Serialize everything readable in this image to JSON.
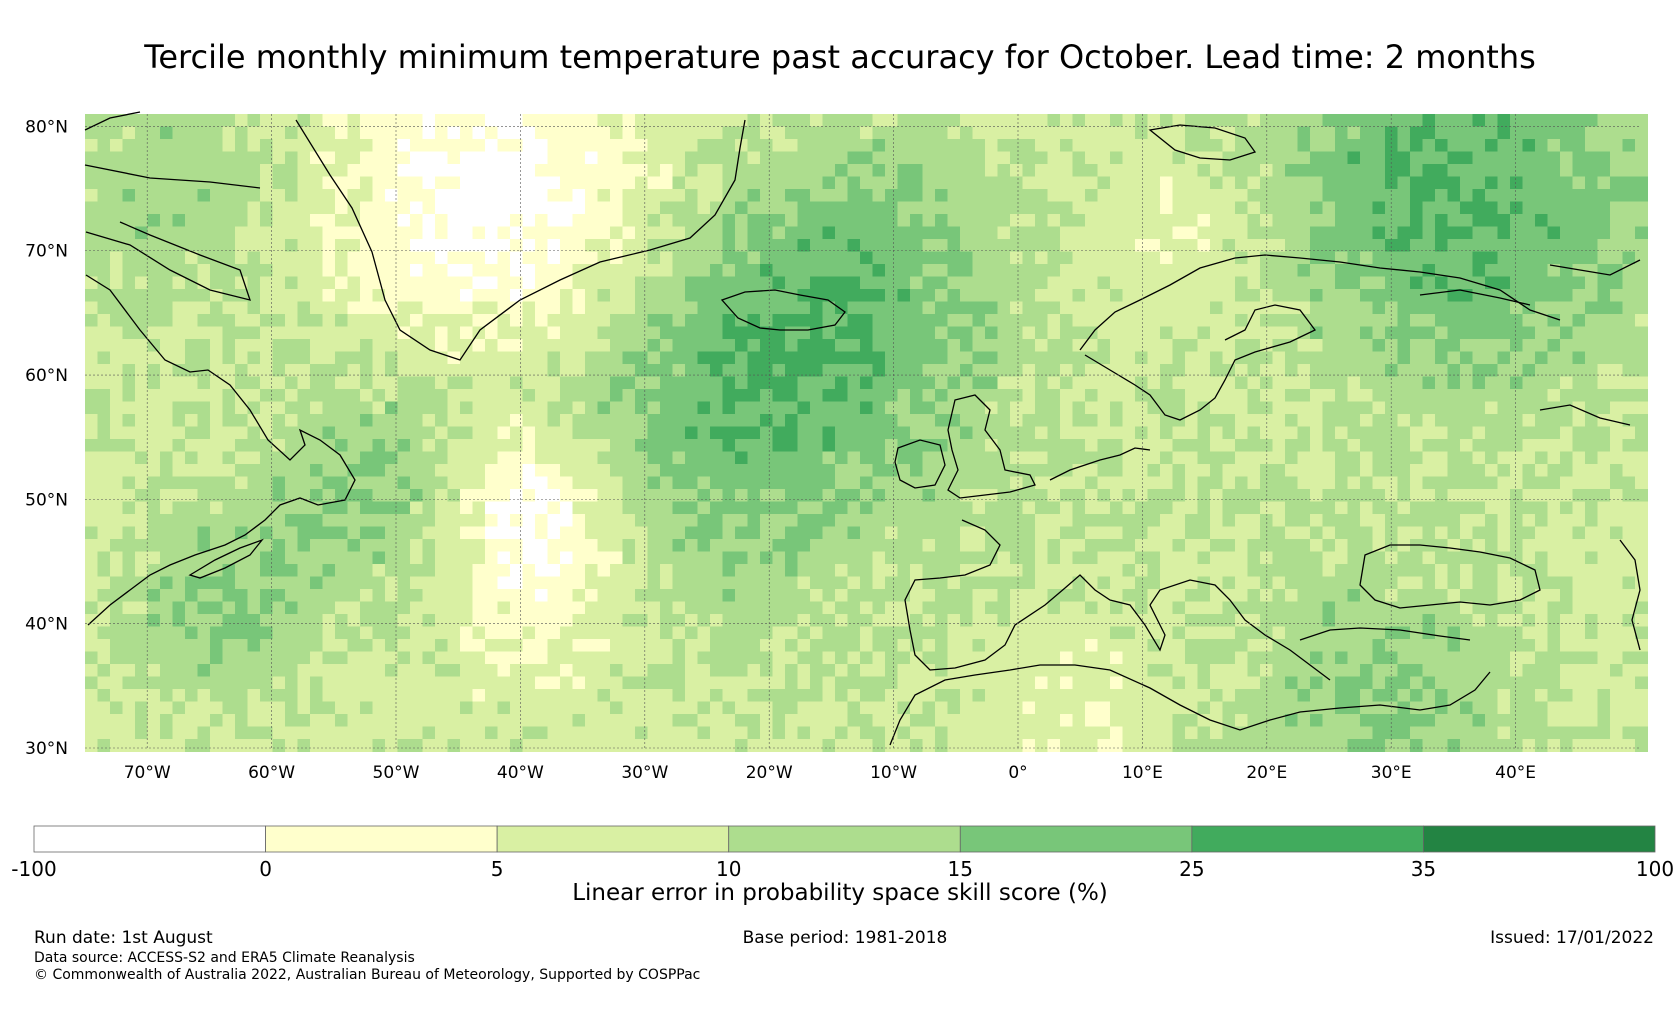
{
  "title": "Tercile monthly minimum temperature past accuracy for October. Lead time: 2 months",
  "map": {
    "lon_range": [
      -75,
      50
    ],
    "lat_range": [
      30,
      81
    ],
    "lat_ticks": [
      {
        "value": 80,
        "label": "80°N"
      },
      {
        "value": 70,
        "label": "70°N"
      },
      {
        "value": 60,
        "label": "60°N"
      },
      {
        "value": 50,
        "label": "50°N"
      },
      {
        "value": 40,
        "label": "40°N"
      },
      {
        "value": 30,
        "label": "30°N"
      }
    ],
    "lon_ticks": [
      {
        "value": -70,
        "label": "70°W"
      },
      {
        "value": -60,
        "label": "60°W"
      },
      {
        "value": -50,
        "label": "50°W"
      },
      {
        "value": -40,
        "label": "40°W"
      },
      {
        "value": -30,
        "label": "30°W"
      },
      {
        "value": -20,
        "label": "20°W"
      },
      {
        "value": -10,
        "label": "10°W"
      },
      {
        "value": 0,
        "label": "0°"
      },
      {
        "value": 10,
        "label": "10°E"
      },
      {
        "value": 20,
        "label": "20°E"
      },
      {
        "value": 30,
        "label": "30°E"
      },
      {
        "value": 40,
        "label": "40°E"
      }
    ]
  },
  "colorbar": {
    "boundaries": [
      "-100",
      "0",
      "5",
      "10",
      "15",
      "25",
      "35",
      "100"
    ],
    "colors": [
      "#ffffff",
      "#ffffcc",
      "#d9f0a3",
      "#addd8e",
      "#78c679",
      "#41ab5d",
      "#238443"
    ],
    "label": "Linear error in probability space skill score (%)"
  },
  "footer": {
    "run_date": "Run date: 1st August",
    "base_period": "Base period: 1981-2018",
    "issued": "Issued: 17/01/2022",
    "data_source": "Data source: ACCESS-S2 and ERA5 Climate Reanalysis",
    "copyright": "© Commonwealth of Australia 2022, Australian Bureau of Meteorology, Supported by COSPPac"
  }
}
